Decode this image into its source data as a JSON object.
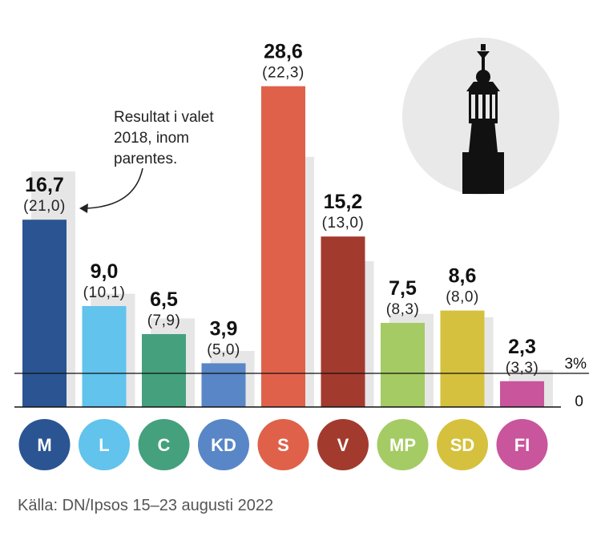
{
  "chart_data": {
    "type": "bar",
    "title": "",
    "categories": [
      "M",
      "L",
      "C",
      "KD",
      "S",
      "V",
      "MP",
      "SD",
      "FI"
    ],
    "series": [
      {
        "name": "",
        "values": [
          16.7,
          9.0,
          6.5,
          3.9,
          28.6,
          15.2,
          7.5,
          8.6,
          2.3
        ]
      },
      {
        "name": "",
        "values": [
          21.0,
          10.1,
          7.9,
          5.0,
          22.3,
          13.0,
          8.3,
          8.0,
          3.3
        ]
      }
    ],
    "value_labels": [
      "16,7",
      "9,0",
      "6,5",
      "3,9",
      "28,6",
      "15,2",
      "7,5",
      "8,6",
      "2,3"
    ],
    "previous_labels": [
      "(21,0)",
      "(10,1)",
      "(7,9)",
      "(5,0)",
      "(22,3)",
      "(13,0)",
      "(8,3)",
      "(8,0)",
      "(3,3)"
    ],
    "colors": [
      "#2b5592",
      "#62c3ec",
      "#45a07e",
      "#5986c6",
      "#e0614a",
      "#a33a2e",
      "#a5cb64",
      "#d5c13d",
      "#c9559c"
    ],
    "previous_color": "#e6e6e6",
    "ylim": [
      0,
      30
    ],
    "threshold": {
      "value": 3,
      "label": "3%"
    },
    "zero_label": "0",
    "annotation": {
      "lines": [
        "Resultat i valet",
        "2018, inom",
        "parentes."
      ]
    },
    "source": "Källa: DN/Ipsos 15–23 augusti 2022",
    "decoration_icon": "city-hall-tower-icon"
  }
}
